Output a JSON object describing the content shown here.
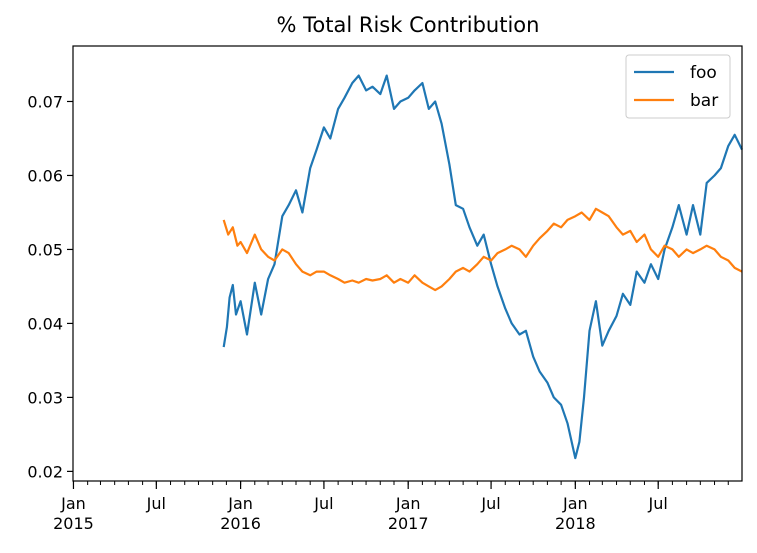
{
  "chart_data": {
    "type": "line",
    "title": "% Total Risk Contribution",
    "xlabel": "",
    "ylabel": "",
    "xlim": [
      "2014-12-31",
      "2018-12-31"
    ],
    "ylim": [
      0.0187,
      0.0775
    ],
    "y_ticks": [
      0.02,
      0.03,
      0.04,
      0.05,
      0.06,
      0.07
    ],
    "y_tick_labels": [
      "0.02",
      "0.03",
      "0.04",
      "0.05",
      "0.06",
      "0.07"
    ],
    "x_major_ticks": [
      {
        "date": "2015-01-01",
        "line1": "Jan",
        "line2": "2015"
      },
      {
        "date": "2015-07-01",
        "line1": "Jul",
        "line2": ""
      },
      {
        "date": "2016-01-01",
        "line1": "Jan",
        "line2": "2016"
      },
      {
        "date": "2016-07-01",
        "line1": "Jul",
        "line2": ""
      },
      {
        "date": "2017-01-01",
        "line1": "Jan",
        "line2": "2017"
      },
      {
        "date": "2017-07-01",
        "line1": "Jul",
        "line2": ""
      },
      {
        "date": "2018-01-01",
        "line1": "Jan",
        "line2": "2018"
      },
      {
        "date": "2018-07-01",
        "line1": "Jul",
        "line2": ""
      }
    ],
    "grid": false,
    "legend_position": "top-right",
    "series": [
      {
        "name": "foo",
        "color": "#1f77b4",
        "x": [
          "2015-11-25",
          "2015-12-02",
          "2015-12-08",
          "2015-12-15",
          "2015-12-22",
          "2016-01-01",
          "2016-01-15",
          "2016-02-01",
          "2016-02-15",
          "2016-03-01",
          "2016-03-15",
          "2016-04-01",
          "2016-04-15",
          "2016-05-01",
          "2016-05-15",
          "2016-06-01",
          "2016-06-15",
          "2016-07-01",
          "2016-07-15",
          "2016-08-01",
          "2016-08-15",
          "2016-09-01",
          "2016-09-15",
          "2016-10-01",
          "2016-10-15",
          "2016-11-01",
          "2016-11-15",
          "2016-12-01",
          "2016-12-15",
          "2017-01-01",
          "2017-01-15",
          "2017-02-01",
          "2017-02-15",
          "2017-03-01",
          "2017-03-15",
          "2017-04-01",
          "2017-04-15",
          "2017-05-01",
          "2017-05-15",
          "2017-06-01",
          "2017-06-15",
          "2017-07-01",
          "2017-07-15",
          "2017-08-01",
          "2017-08-15",
          "2017-09-01",
          "2017-09-15",
          "2017-10-01",
          "2017-10-15",
          "2017-11-01",
          "2017-11-15",
          "2017-12-01",
          "2017-12-15",
          "2018-01-01",
          "2018-01-10",
          "2018-01-20",
          "2018-02-01",
          "2018-02-15",
          "2018-03-01",
          "2018-03-15",
          "2018-04-01",
          "2018-04-15",
          "2018-05-01",
          "2018-05-15",
          "2018-06-01",
          "2018-06-15",
          "2018-07-01",
          "2018-07-15",
          "2018-08-01",
          "2018-08-15",
          "2018-09-01",
          "2018-09-15",
          "2018-10-01",
          "2018-10-15",
          "2018-11-01",
          "2018-11-15",
          "2018-12-01",
          "2018-12-15",
          "2018-12-31"
        ],
        "y": [
          0.0368,
          0.0395,
          0.0435,
          0.0452,
          0.0412,
          0.043,
          0.0385,
          0.0455,
          0.0412,
          0.046,
          0.048,
          0.0545,
          0.056,
          0.058,
          0.055,
          0.061,
          0.0635,
          0.0665,
          0.065,
          0.069,
          0.0705,
          0.0725,
          0.0735,
          0.0715,
          0.072,
          0.071,
          0.0735,
          0.069,
          0.07,
          0.0705,
          0.0715,
          0.0725,
          0.069,
          0.07,
          0.067,
          0.0615,
          0.056,
          0.0555,
          0.053,
          0.0505,
          0.052,
          0.048,
          0.045,
          0.042,
          0.04,
          0.0385,
          0.039,
          0.0355,
          0.0335,
          0.032,
          0.03,
          0.029,
          0.0265,
          0.0218,
          0.024,
          0.03,
          0.039,
          0.043,
          0.037,
          0.039,
          0.041,
          0.044,
          0.0425,
          0.047,
          0.0455,
          0.048,
          0.046,
          0.05,
          0.053,
          0.056,
          0.052,
          0.056,
          0.052,
          0.059,
          0.06,
          0.061,
          0.064,
          0.0655,
          0.0635
        ]
      },
      {
        "name": "bar",
        "color": "#ff7f0e",
        "x": [
          "2015-11-25",
          "2015-12-05",
          "2015-12-15",
          "2015-12-25",
          "2016-01-01",
          "2016-01-15",
          "2016-02-01",
          "2016-02-15",
          "2016-03-01",
          "2016-03-15",
          "2016-04-01",
          "2016-04-15",
          "2016-05-01",
          "2016-05-15",
          "2016-06-01",
          "2016-06-15",
          "2016-07-01",
          "2016-07-15",
          "2016-08-01",
          "2016-08-15",
          "2016-09-01",
          "2016-09-15",
          "2016-10-01",
          "2016-10-15",
          "2016-11-01",
          "2016-11-15",
          "2016-12-01",
          "2016-12-15",
          "2017-01-01",
          "2017-01-15",
          "2017-02-01",
          "2017-02-15",
          "2017-03-01",
          "2017-03-15",
          "2017-04-01",
          "2017-04-15",
          "2017-05-01",
          "2017-05-15",
          "2017-06-01",
          "2017-06-15",
          "2017-07-01",
          "2017-07-15",
          "2017-08-01",
          "2017-08-15",
          "2017-09-01",
          "2017-09-15",
          "2017-10-01",
          "2017-10-15",
          "2017-11-01",
          "2017-11-15",
          "2017-12-01",
          "2017-12-15",
          "2018-01-01",
          "2018-01-15",
          "2018-02-01",
          "2018-02-15",
          "2018-03-01",
          "2018-03-15",
          "2018-04-01",
          "2018-04-15",
          "2018-05-01",
          "2018-05-15",
          "2018-06-01",
          "2018-06-15",
          "2018-07-01",
          "2018-07-15",
          "2018-08-01",
          "2018-08-15",
          "2018-09-01",
          "2018-09-15",
          "2018-10-01",
          "2018-10-15",
          "2018-11-01",
          "2018-11-15",
          "2018-12-01",
          "2018-12-15",
          "2018-12-31"
        ],
        "y": [
          0.054,
          0.052,
          0.053,
          0.0505,
          0.051,
          0.0495,
          0.052,
          0.05,
          0.049,
          0.0485,
          0.05,
          0.0495,
          0.048,
          0.047,
          0.0465,
          0.047,
          0.047,
          0.0465,
          0.046,
          0.0455,
          0.0458,
          0.0455,
          0.046,
          0.0458,
          0.046,
          0.0465,
          0.0455,
          0.046,
          0.0455,
          0.0465,
          0.0455,
          0.045,
          0.0445,
          0.045,
          0.046,
          0.047,
          0.0475,
          0.047,
          0.048,
          0.049,
          0.0485,
          0.0495,
          0.05,
          0.0505,
          0.05,
          0.049,
          0.0505,
          0.0515,
          0.0525,
          0.0535,
          0.053,
          0.054,
          0.0545,
          0.055,
          0.054,
          0.0555,
          0.055,
          0.0545,
          0.053,
          0.052,
          0.0525,
          0.051,
          0.052,
          0.05,
          0.049,
          0.0505,
          0.05,
          0.049,
          0.05,
          0.0495,
          0.05,
          0.0505,
          0.05,
          0.049,
          0.0485,
          0.0475,
          0.047
        ]
      }
    ]
  }
}
